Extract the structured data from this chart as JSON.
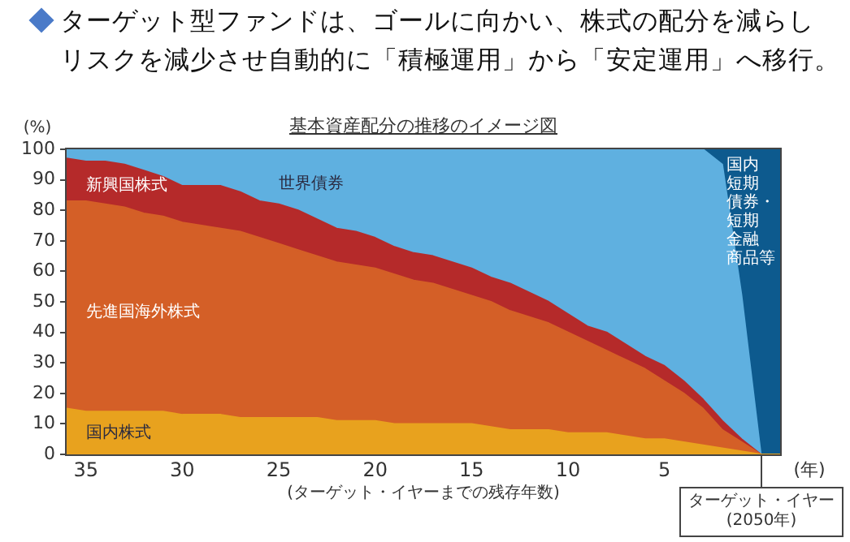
{
  "chart_data": {
    "type": "area",
    "title": "ターゲット型ファンドは、ゴールに向かい、株式の配分を減らしリスクを減少させ自動的に「積極運用」から「安定運用」へ移行。",
    "subtitle": "基本資産配分の推移のイメージ図",
    "xlabel": "(ターゲット・イヤーまでの残存年数)",
    "ylabel": "(%)",
    "annotations": [
      "(年)",
      {
        "text": "ターゲット・イヤー\n(2050年)",
        "x": 0,
        "y": 0
      }
    ],
    "x": [
      36,
      35,
      34,
      33,
      32,
      31,
      30,
      29,
      28,
      27,
      26,
      25,
      24,
      23,
      22,
      21,
      20,
      19,
      18,
      17,
      16,
      15,
      14,
      13,
      12,
      11,
      10,
      9,
      8,
      7,
      6,
      5,
      4,
      3,
      2,
      1,
      0,
      -1
    ],
    "xlim": [
      36,
      -1
    ],
    "xticks": [
      35,
      30,
      25,
      20,
      15,
      10,
      5
    ],
    "ylim": [
      0,
      100
    ],
    "yticks": [
      0,
      10,
      20,
      30,
      40,
      50,
      60,
      70,
      80,
      90,
      100
    ],
    "stacked": true,
    "series": [
      {
        "name": "国内株式",
        "color": "#e8a21e",
        "values": [
          15,
          14,
          14,
          14,
          14,
          14,
          13,
          13,
          13,
          12,
          12,
          12,
          12,
          12,
          11,
          11,
          11,
          10,
          10,
          10,
          10,
          10,
          9,
          8,
          8,
          8,
          7,
          7,
          7,
          6,
          5,
          5,
          4,
          3,
          2,
          1,
          0,
          0
        ]
      },
      {
        "name": "先進国海外株式",
        "color": "#d45f27",
        "values": [
          68,
          69,
          68,
          67,
          65,
          64,
          63,
          62,
          61,
          61,
          59,
          57,
          55,
          53,
          52,
          51,
          50,
          49,
          47,
          46,
          44,
          42,
          41,
          39,
          37,
          35,
          33,
          30,
          27,
          25,
          23,
          19,
          16,
          12,
          6,
          3,
          0,
          0
        ]
      },
      {
        "name": "新興国株式",
        "color": "#b52a2a",
        "values": [
          14,
          13,
          14,
          14,
          14,
          13,
          12,
          13,
          14,
          13,
          12,
          13,
          13,
          12,
          11,
          11,
          10,
          9,
          9,
          9,
          9,
          9,
          8,
          9,
          8,
          7,
          6,
          5,
          6,
          5,
          4,
          5,
          4,
          3,
          3,
          1,
          0,
          0
        ]
      },
      {
        "name": "世界債券",
        "color": "#5fb0e0",
        "values": [
          3,
          4,
          4,
          5,
          7,
          9,
          12,
          12,
          12,
          14,
          17,
          18,
          20,
          23,
          26,
          27,
          29,
          32,
          34,
          35,
          37,
          39,
          42,
          44,
          47,
          50,
          54,
          58,
          60,
          64,
          68,
          71,
          76,
          82,
          84,
          47,
          0,
          0
        ]
      },
      {
        "name": "国内短期債券・短期金融商品等",
        "color": "#0d5a8e",
        "values": [
          null,
          null,
          null,
          null,
          null,
          null,
          null,
          null,
          null,
          null,
          null,
          null,
          null,
          null,
          null,
          null,
          null,
          null,
          null,
          null,
          null,
          null,
          null,
          null,
          null,
          null,
          null,
          null,
          null,
          null,
          null,
          null,
          null,
          0,
          5,
          48,
          100,
          100
        ]
      }
    ]
  }
}
